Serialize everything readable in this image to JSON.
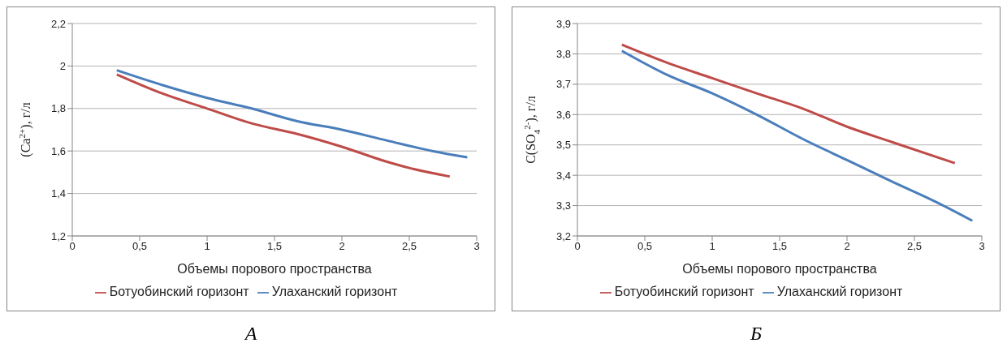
{
  "chart_data": [
    {
      "type": "line",
      "ylabel": "(Ca$^{2+}$), г/л",
      "xlabel": "Объемы порового пространства",
      "annotations": [
        "А"
      ],
      "xlim": [
        0,
        3
      ],
      "xticks": [
        0,
        {
          "value": 0.5,
          "label": "0,5"
        },
        1,
        {
          "value": 1.5,
          "label": "1,5"
        },
        2,
        {
          "value": 2.5,
          "label": "2,5"
        },
        3
      ],
      "ylim": [
        1.2,
        2.2
      ],
      "yticks": [
        {
          "value": 1.2,
          "label": "1,2"
        },
        {
          "value": 1.4,
          "label": "1,4"
        },
        {
          "value": 1.6,
          "label": "1,6"
        },
        {
          "value": 1.8,
          "label": "1,8"
        },
        2,
        {
          "value": 2.2,
          "label": "2,2"
        }
      ],
      "grid": "y",
      "legend": "bottom",
      "marker": "none",
      "line_style": "solid",
      "series": [
        {
          "name": "Улаханский горизонт",
          "color": "#4a7ebb",
          "x": [
            0.33,
            0.67,
            1.0,
            1.33,
            1.67,
            2.0,
            2.33,
            2.67,
            2.93
          ],
          "values": [
            1.98,
            1.91,
            1.85,
            1.8,
            1.74,
            1.7,
            1.65,
            1.6,
            1.57
          ]
        },
        {
          "name": "Ботуобинский горизонт",
          "color": "#be4b48",
          "x": [
            0.33,
            0.67,
            1.0,
            1.33,
            1.67,
            2.0,
            2.33,
            2.5,
            2.8
          ],
          "values": [
            1.96,
            1.87,
            1.8,
            1.73,
            1.68,
            1.62,
            1.55,
            1.52,
            1.48
          ]
        }
      ]
    },
    {
      "type": "line",
      "ylabel": "C(SO$_{4}$$^{2-}$), г/л",
      "xlabel": "Объемы порового пространства",
      "annotations": [
        "Б"
      ],
      "xlim": [
        0,
        3
      ],
      "xticks": [
        0,
        {
          "value": 0.5,
          "label": "0,5"
        },
        1,
        {
          "value": 1.5,
          "label": "1,5"
        },
        2,
        {
          "value": 2.5,
          "label": "2,5"
        },
        3
      ],
      "ylim": [
        3.2,
        3.9
      ],
      "yticks": [
        {
          "value": 3.2,
          "label": "3,2"
        },
        {
          "value": 3.3,
          "label": "3,3"
        },
        {
          "value": 3.4,
          "label": "3,4"
        },
        {
          "value": 3.5,
          "label": "3,5"
        },
        {
          "value": 3.6,
          "label": "3,6"
        },
        {
          "value": 3.7,
          "label": "3,7"
        },
        {
          "value": 3.8,
          "label": "3,8"
        },
        {
          "value": 3.9,
          "label": "3,9"
        }
      ],
      "grid": "y",
      "legend": "bottom",
      "marker": "none",
      "line_style": "solid",
      "series": [
        {
          "name": "Улаханский горизонт",
          "color": "#4a7ebb",
          "x": [
            0.33,
            0.67,
            1.0,
            1.33,
            1.67,
            2.0,
            2.33,
            2.67,
            2.93
          ],
          "values": [
            3.81,
            3.73,
            3.67,
            3.6,
            3.52,
            3.45,
            3.38,
            3.31,
            3.25
          ]
        },
        {
          "name": "Ботуобинский горизонт",
          "color": "#be4b48",
          "x": [
            0.33,
            0.67,
            1.0,
            1.33,
            1.67,
            2.0,
            2.33,
            2.8
          ],
          "values": [
            3.83,
            3.77,
            3.72,
            3.67,
            3.62,
            3.56,
            3.51,
            3.44
          ]
        }
      ]
    }
  ]
}
